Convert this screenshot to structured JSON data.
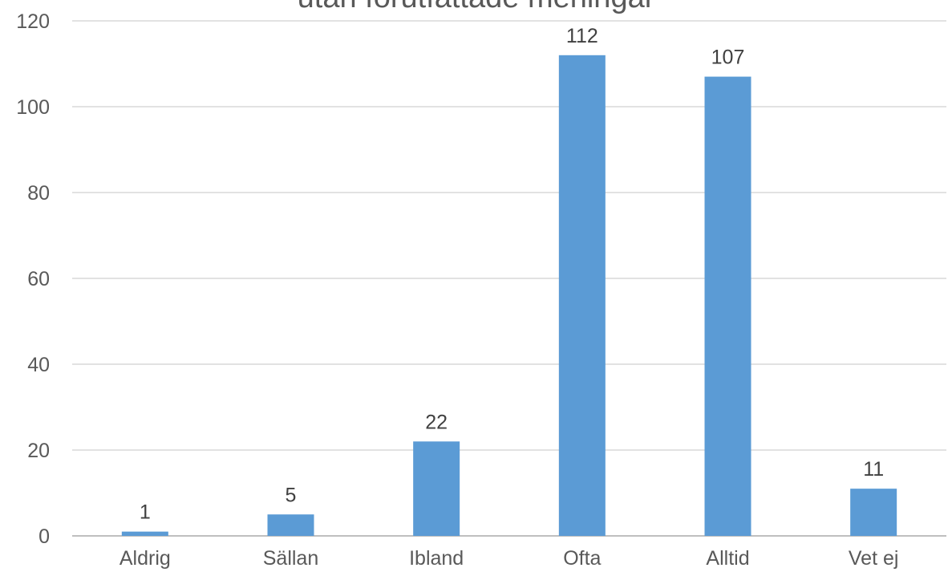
{
  "chart_data": {
    "type": "bar",
    "title": "utan förutfattade meningar",
    "xlabel": "",
    "ylabel": "",
    "categories": [
      "Aldrig",
      "Sällan",
      "Ibland",
      "Ofta",
      "Alltid",
      "Vet ej"
    ],
    "values": [
      1,
      5,
      22,
      112,
      107,
      11
    ],
    "ylim": [
      0,
      120
    ],
    "yticks": [
      0,
      20,
      40,
      60,
      80,
      100,
      120
    ],
    "data_labels": true,
    "grid": true,
    "legend": "none",
    "colors": {
      "bar": "#5B9BD5",
      "grid": "#D9D9D9",
      "axis_text": "#595959",
      "label_text": "#404040",
      "baseline": "#BFBFBF"
    }
  }
}
